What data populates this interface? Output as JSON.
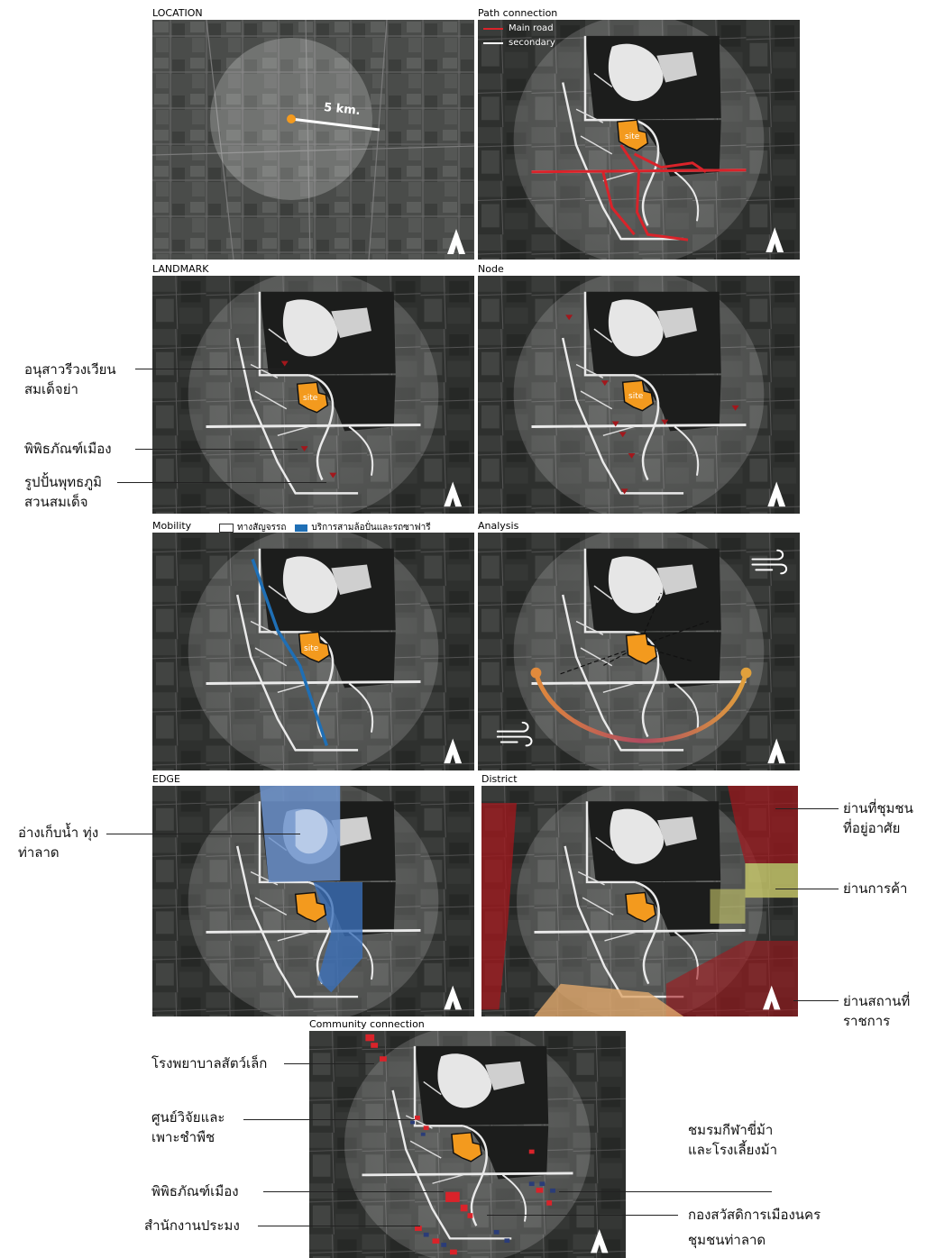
{
  "panels": {
    "location": {
      "title": "LOCATION",
      "scale_label": "5 km."
    },
    "path": {
      "title": "Path connection",
      "legend": {
        "main": "Main road",
        "secondary": "secondary",
        "main_color": "#d9232a",
        "secondary_color": "#ffffff"
      }
    },
    "landmark": {
      "title": "LANDMARK"
    },
    "node": {
      "title": "Node"
    },
    "mobility": {
      "title": "Mobility",
      "legend": {
        "traffic": "ทางสัญจรรถ",
        "service": "บริการสามล้อปั่นและรถซาฟารี",
        "service_color": "#1f6fb5"
      }
    },
    "analysis": {
      "title": "Analysis"
    },
    "edge": {
      "title": "EDGE"
    },
    "district": {
      "title": "District"
    },
    "community": {
      "title": "Community connection"
    }
  },
  "site_label": "site",
  "labels": {
    "landmark": {
      "l1_a": "อนุสาวรีวงเวียน",
      "l1_b": "สมเด็จย่า",
      "l2": "พิพิธภัณฑ์เมือง",
      "l3_a": "รูปปั้นพุทธภูมิ",
      "l3_b": "สวนสมเด็จ"
    },
    "edge": {
      "e1_a": "อ่างเก็บน้ำ ทุ่ง",
      "e1_b": "ท่าลาด"
    },
    "district": {
      "d1_a": "ย่านที่ชุมชน",
      "d1_b": "ที่อยู่อาศัย",
      "d2": "ย่านการค้า",
      "d3_a": "ย่านสถานที่",
      "d3_b": "ราชการ"
    },
    "community": {
      "c1": "โรงพยาบาลสัตว์เล็ก",
      "c2_a": "ศูนย์วิจัยและ",
      "c2_b": "เพาะชำพืช",
      "c3": "พิพิธภัณฑ์เมือง",
      "c4": "สำนักงานประมง",
      "c5_a": "ชมรมกีฬาขี่ม้า",
      "c5_b": "และโรงเลี้ยงม้า",
      "c6_a": "กองสวัสดิการเมืองนคร",
      "c6_b": "ชุมชนท่าลาด"
    }
  },
  "colors": {
    "site": "#f39a1e",
    "water": "#3b6fb8",
    "residential": "#a3171c",
    "commercial": "#c9c96a",
    "government": "#e0a86b",
    "node_marker": "#a3171c"
  },
  "icons": {
    "north": "north-arrow-icon",
    "wind": "wind-icon",
    "sun": "sun-icon"
  }
}
